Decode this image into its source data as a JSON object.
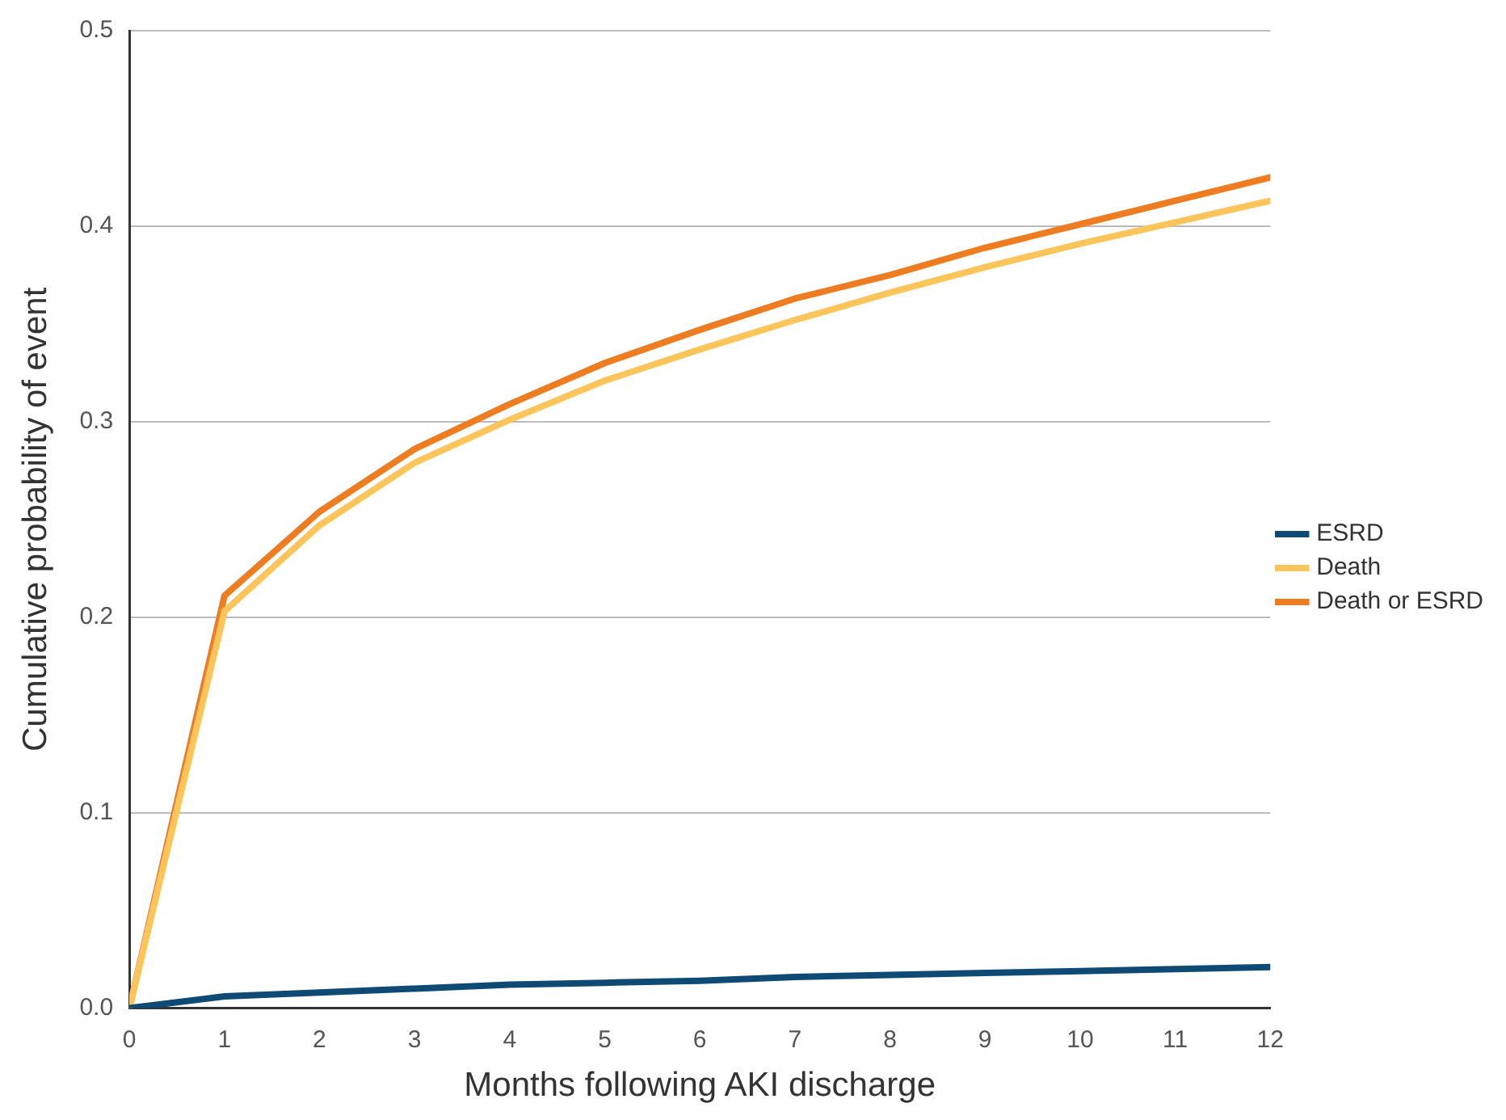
{
  "chart_data": {
    "type": "line",
    "xlabel": "Months following AKI discharge",
    "ylabel": "Cumulative probability of event",
    "x": [
      0,
      1,
      2,
      3,
      4,
      5,
      6,
      7,
      8,
      9,
      10,
      11,
      12
    ],
    "series": [
      {
        "name": "ESRD",
        "color": "#0e4a73",
        "values": [
          0,
          0.006,
          0.008,
          0.01,
          0.012,
          0.013,
          0.014,
          0.016,
          0.017,
          0.018,
          0.019,
          0.02,
          0.021
        ]
      },
      {
        "name": "Death",
        "color": "#fbc55c",
        "values": [
          0,
          0.203,
          0.247,
          0.279,
          0.301,
          0.321,
          0.337,
          0.352,
          0.366,
          0.379,
          0.391,
          0.402,
          0.413
        ]
      },
      {
        "name": "Death or ESRD",
        "color": "#ee7d22",
        "values": [
          0,
          0.211,
          0.254,
          0.286,
          0.309,
          0.33,
          0.347,
          0.363,
          0.375,
          0.389,
          0.401,
          0.413,
          0.425
        ]
      }
    ],
    "xlim": [
      0,
      12
    ],
    "xticks": [
      0,
      1,
      2,
      3,
      4,
      5,
      6,
      7,
      8,
      9,
      10,
      11,
      12
    ],
    "ylim": [
      0,
      0.5
    ],
    "yticks": [
      {
        "value": 0,
        "label": "0.0"
      },
      0.1,
      0.2,
      0.3,
      0.4,
      0.5
    ],
    "grid": "y",
    "legend": "right",
    "marker": "none",
    "line_style": "solid"
  }
}
